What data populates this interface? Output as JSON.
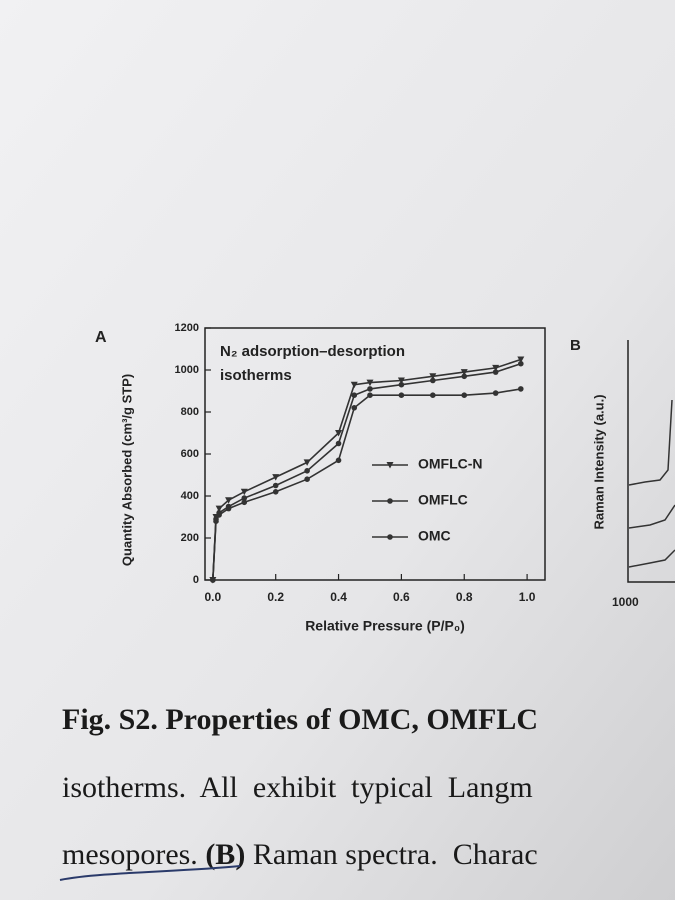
{
  "chart_data": {
    "type": "line",
    "panel_label": "A",
    "annotation": [
      "N₂ adsorption–desorption",
      "isotherms"
    ],
    "x_label": "Relative Pressure (P/P₀)",
    "y_label": "Quantity Absorbed (cm³/g STP)",
    "x": [
      0,
      0.01,
      0.02,
      0.05,
      0.1,
      0.2,
      0.3,
      0.4,
      0.45,
      0.5,
      0.6,
      0.7,
      0.8,
      0.9,
      0.98
    ],
    "series": [
      {
        "name": "OMFLC-N",
        "color": "#333333",
        "marker": "triangle",
        "values": [
          0,
          300,
          340,
          380,
          420,
          490,
          560,
          700,
          930,
          940,
          950,
          970,
          990,
          1010,
          1050
        ]
      },
      {
        "name": "OMFLC",
        "color": "#333333",
        "marker": "circle",
        "values": [
          0,
          290,
          320,
          350,
          390,
          450,
          520,
          650,
          880,
          910,
          930,
          950,
          970,
          990,
          1030
        ]
      },
      {
        "name": "OMC",
        "color": "#333333",
        "marker": "circle",
        "values": [
          0,
          280,
          310,
          340,
          370,
          420,
          480,
          570,
          820,
          880,
          880,
          880,
          880,
          890,
          910
        ]
      }
    ],
    "xlim": [
      -0.025,
      1.057
    ],
    "ylim": [
      0,
      1200
    ],
    "xticks": [
      {
        "value": 0,
        "label": "0.0"
      },
      0.2,
      0.4,
      0.6,
      0.8,
      {
        "value": 1,
        "label": "1.0"
      }
    ],
    "yticks": [
      0,
      200,
      400,
      600,
      800,
      1000,
      1200
    ]
  },
  "panel_b": {
    "label": "B",
    "y_label": "Raman Intensity (a.u.)",
    "x_tick": "1000"
  },
  "caption": {
    "line1": "Fig. S2. Properties of OMC, OMFLC",
    "line2": "isotherms.  All  exhibit  typical  Langm",
    "line3": [
      "mesopores.",
      " (B)",
      " Raman spectra.  Charac"
    ]
  }
}
